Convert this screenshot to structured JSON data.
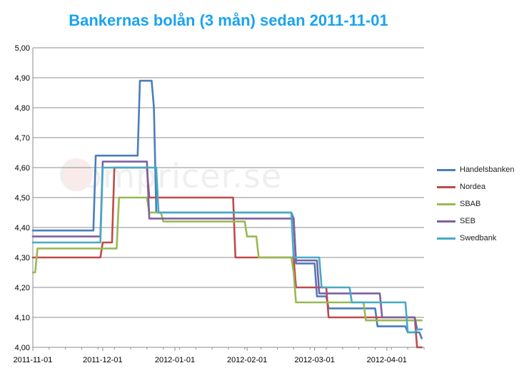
{
  "chart_data": {
    "type": "line",
    "title": "Bankernas bolån (3 mån) sedan 2011-11-01",
    "watermark": "Compricer.se",
    "ylim": [
      4.0,
      5.0
    ],
    "xlim": [
      "2011-11-01",
      "2012-04-17"
    ],
    "y_ticks": [
      "4,00",
      "4,10",
      "4,20",
      "4,30",
      "4,40",
      "4,50",
      "4,60",
      "4,70",
      "4,80",
      "4,90",
      "5,00"
    ],
    "x_ticks": [
      "2011-11-01",
      "2011-12-01",
      "2012-01-01",
      "2012-02-01",
      "2012-03-01",
      "2012-04-01"
    ],
    "grid": true,
    "legend_position": "right",
    "series": [
      {
        "name": "Handelsbanken",
        "color": "#4a7ebb",
        "points": [
          [
            "2011-11-01",
            4.39
          ],
          [
            "2011-11-27",
            4.39
          ],
          [
            "2011-11-28",
            4.64
          ],
          [
            "2011-12-16",
            4.64
          ],
          [
            "2011-12-17",
            4.89
          ],
          [
            "2011-12-22",
            4.89
          ],
          [
            "2011-12-23",
            4.8
          ],
          [
            "2011-12-24",
            4.45
          ],
          [
            "2012-01-25",
            4.45
          ],
          [
            "2012-02-20",
            4.45
          ],
          [
            "2012-02-21",
            4.43
          ],
          [
            "2012-02-22",
            4.28
          ],
          [
            "2012-03-01",
            4.28
          ],
          [
            "2012-03-02",
            4.17
          ],
          [
            "2012-03-06",
            4.17
          ],
          [
            "2012-03-07",
            4.13
          ],
          [
            "2012-03-27",
            4.13
          ],
          [
            "2012-03-28",
            4.07
          ],
          [
            "2012-04-09",
            4.07
          ],
          [
            "2012-04-10",
            4.05
          ],
          [
            "2012-04-15",
            4.05
          ],
          [
            "2012-04-16",
            4.03
          ]
        ]
      },
      {
        "name": "Nordea",
        "color": "#be4b48",
        "points": [
          [
            "2011-11-01",
            4.3
          ],
          [
            "2011-11-30",
            4.3
          ],
          [
            "2011-12-01",
            4.35
          ],
          [
            "2011-12-05",
            4.35
          ],
          [
            "2011-12-06",
            4.6
          ],
          [
            "2011-12-20",
            4.6
          ],
          [
            "2011-12-21",
            4.5
          ],
          [
            "2012-01-26",
            4.5
          ],
          [
            "2012-01-27",
            4.3
          ],
          [
            "2012-02-04",
            4.3
          ],
          [
            "2012-02-21",
            4.3
          ],
          [
            "2012-02-22",
            4.2
          ],
          [
            "2012-03-06",
            4.2
          ],
          [
            "2012-03-07",
            4.1
          ],
          [
            "2012-03-31",
            4.1
          ],
          [
            "2012-04-13",
            4.1
          ],
          [
            "2012-04-14",
            4.0
          ],
          [
            "2012-04-16",
            4.0
          ]
        ]
      },
      {
        "name": "SBAB",
        "color": "#98b954",
        "points": [
          [
            "2011-11-01",
            4.25
          ],
          [
            "2011-11-02",
            4.25
          ],
          [
            "2011-11-03",
            4.33
          ],
          [
            "2011-12-07",
            4.33
          ],
          [
            "2011-12-08",
            4.5
          ],
          [
            "2011-12-20",
            4.5
          ],
          [
            "2011-12-21",
            4.45
          ],
          [
            "2011-12-26",
            4.45
          ],
          [
            "2011-12-27",
            4.42
          ],
          [
            "2012-01-26",
            4.42
          ],
          [
            "2012-01-31",
            4.42
          ],
          [
            "2012-02-01",
            4.37
          ],
          [
            "2012-02-05",
            4.37
          ],
          [
            "2012-02-06",
            4.3
          ],
          [
            "2012-02-20",
            4.3
          ],
          [
            "2012-02-21",
            4.25
          ],
          [
            "2012-02-22",
            4.15
          ],
          [
            "2012-03-22",
            4.15
          ],
          [
            "2012-03-23",
            4.09
          ],
          [
            "2012-04-16",
            4.09
          ]
        ]
      },
      {
        "name": "SEB",
        "color": "#7d60a0",
        "points": [
          [
            "2011-11-01",
            4.37
          ],
          [
            "2011-11-30",
            4.37
          ],
          [
            "2011-12-01",
            4.62
          ],
          [
            "2011-12-20",
            4.62
          ],
          [
            "2011-12-21",
            4.43
          ],
          [
            "2012-02-21",
            4.43
          ],
          [
            "2012-02-22",
            4.29
          ],
          [
            "2012-03-02",
            4.29
          ],
          [
            "2012-03-03",
            4.18
          ],
          [
            "2012-03-22",
            4.18
          ],
          [
            "2012-03-29",
            4.18
          ],
          [
            "2012-03-30",
            4.1
          ],
          [
            "2012-04-13",
            4.1
          ],
          [
            "2012-04-14",
            4.06
          ],
          [
            "2012-04-16",
            4.06
          ]
        ]
      },
      {
        "name": "Swedbank",
        "color": "#46aac5",
        "points": [
          [
            "2011-11-01",
            4.35
          ],
          [
            "2011-11-30",
            4.35
          ],
          [
            "2011-12-01",
            4.6
          ],
          [
            "2011-12-24",
            4.6
          ],
          [
            "2011-12-25",
            4.45
          ],
          [
            "2012-02-20",
            4.45
          ],
          [
            "2012-02-21",
            4.3
          ],
          [
            "2012-03-03",
            4.3
          ],
          [
            "2012-03-04",
            4.2
          ],
          [
            "2012-03-16",
            4.2
          ],
          [
            "2012-03-17",
            4.15
          ],
          [
            "2012-04-09",
            4.15
          ],
          [
            "2012-04-10",
            4.05
          ],
          [
            "2012-04-13",
            4.05
          ],
          [
            "2012-04-14",
            4.06
          ],
          [
            "2012-04-16",
            4.06
          ]
        ]
      }
    ]
  }
}
